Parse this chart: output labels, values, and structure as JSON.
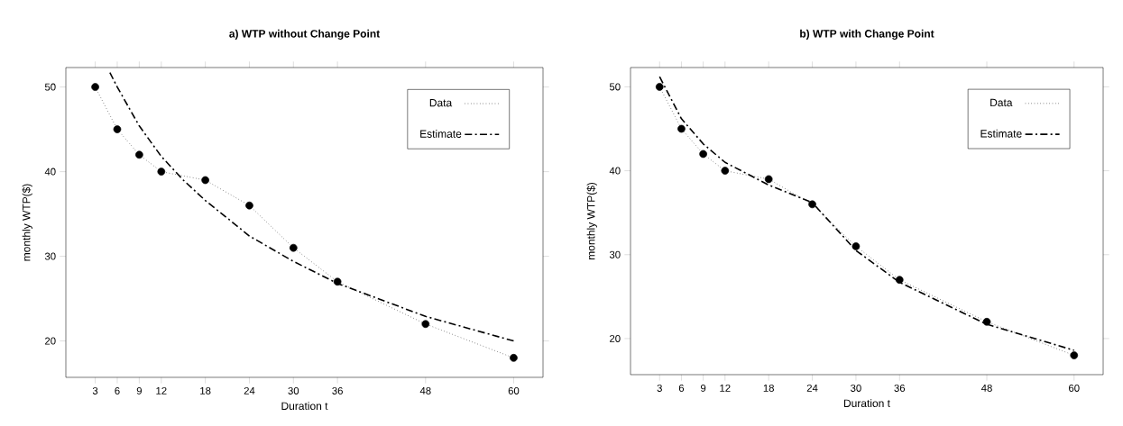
{
  "chart_data": [
    {
      "type": "line",
      "title": "a) WTP without Change Point",
      "xlabel": "Duration t",
      "ylabel": "monthly WTP($)",
      "legend": "top right",
      "xlim": [
        -1,
        64
      ],
      "ylim": [
        15.7,
        52.3
      ],
      "xticks": [
        3,
        6,
        9,
        12,
        18,
        24,
        30,
        36,
        48,
        60
      ],
      "yticks": [
        20,
        30,
        40,
        50
      ],
      "series": [
        {
          "name": "Data",
          "color": "#000000",
          "marker": "circle",
          "line_style": "dotted",
          "x": [
            3,
            6,
            9,
            12,
            18,
            24,
            30,
            36,
            48,
            60
          ],
          "values": [
            50,
            45,
            42,
            40,
            39,
            36,
            31,
            27,
            22,
            18
          ]
        },
        {
          "name": "Estimate",
          "color": "#000000",
          "marker": "none",
          "line_style": "dashdot",
          "x": [
            5,
            6,
            9,
            12,
            15,
            18,
            24,
            30,
            36,
            48,
            60
          ],
          "values": [
            51.7,
            50.0,
            45.4,
            41.8,
            39.0,
            36.6,
            32.4,
            29.4,
            26.8,
            22.9,
            20.0
          ]
        }
      ]
    },
    {
      "type": "line",
      "title": "b) WTP with Change Point",
      "xlabel": "Duration t",
      "ylabel": "monthly WTP($)",
      "legend": "top right",
      "xlim": [
        -1,
        64
      ],
      "ylim": [
        15.7,
        52.3
      ],
      "xticks": [
        3,
        6,
        9,
        12,
        18,
        24,
        30,
        36,
        48,
        60
      ],
      "yticks": [
        20,
        30,
        40,
        50
      ],
      "series": [
        {
          "name": "Data",
          "color": "#000000",
          "marker": "circle",
          "line_style": "dotted",
          "x": [
            3,
            6,
            9,
            12,
            18,
            24,
            30,
            36,
            48,
            60
          ],
          "values": [
            50,
            45,
            42,
            40,
            39,
            36,
            31,
            27,
            22,
            18
          ]
        },
        {
          "name": "Estimate",
          "color": "#000000",
          "marker": "none",
          "line_style": "dashdot",
          "x": [
            3,
            6,
            9,
            12,
            18,
            24,
            30,
            36,
            48,
            60
          ],
          "values": [
            51.2,
            46.2,
            43.2,
            41.0,
            38.3,
            36.2,
            30.5,
            26.7,
            21.7,
            18.6
          ]
        }
      ]
    }
  ]
}
